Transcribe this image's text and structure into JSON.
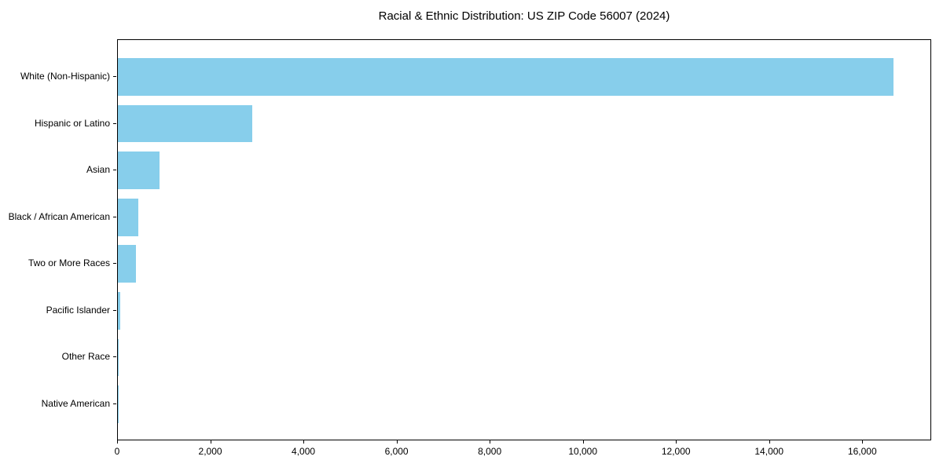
{
  "page": {
    "background": "#ffffff"
  },
  "chart_data": {
    "type": "bar",
    "orientation": "horizontal",
    "title": "Racial & Ethnic Distribution: US ZIP Code 56007 (2024)",
    "categories": [
      "White (Non-Hispanic)",
      "Hispanic or Latino",
      "Asian",
      "Black / African American",
      "Two or More Races",
      "Pacific Islander",
      "Other Race",
      "Native American"
    ],
    "values": [
      16660,
      2890,
      895,
      440,
      395,
      50,
      15,
      5
    ],
    "xlabel": "",
    "ylabel": "",
    "xlim": [
      0,
      17480
    ],
    "xticks": [
      0,
      2000,
      4000,
      6000,
      8000,
      10000,
      12000,
      14000,
      16000
    ],
    "xtick_labels": [
      "0",
      "2,000",
      "4,000",
      "6,000",
      "8,000",
      "10,000",
      "12,000",
      "14,000",
      "16,000"
    ],
    "bar_color": "#87CEEB",
    "spine_color": "#000000",
    "text_color": "#000000",
    "grid": false,
    "legend": "none"
  }
}
